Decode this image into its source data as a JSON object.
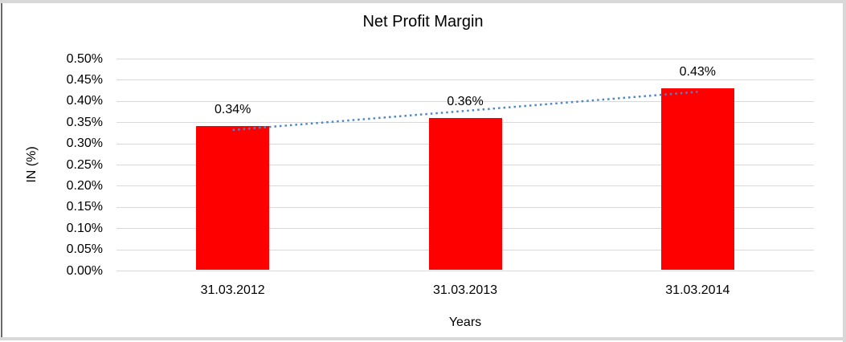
{
  "chart_data": {
    "type": "bar",
    "title": "Net Profit Margin",
    "xlabel": "Years",
    "ylabel": "IN (%)",
    "categories": [
      "31.03.2012",
      "31.03.2013",
      "31.03.2014"
    ],
    "values": [
      0.34,
      0.36,
      0.43
    ],
    "data_labels": [
      "0.34%",
      "0.36%",
      "0.43%"
    ],
    "ylim": [
      0,
      0.5
    ],
    "ytick_step": 0.05,
    "ytick_labels": [
      "0.00%",
      "0.05%",
      "0.10%",
      "0.15%",
      "0.20%",
      "0.25%",
      "0.30%",
      "0.35%",
      "0.40%",
      "0.45%",
      "0.50%"
    ],
    "grid": true,
    "legend": "none",
    "bar_color": "#ff0000",
    "gridline_color": "#d9d9d9",
    "text_color": "#000000",
    "trendline": {
      "type": "linear",
      "style": "dotted",
      "color": "#4e87c7"
    }
  }
}
